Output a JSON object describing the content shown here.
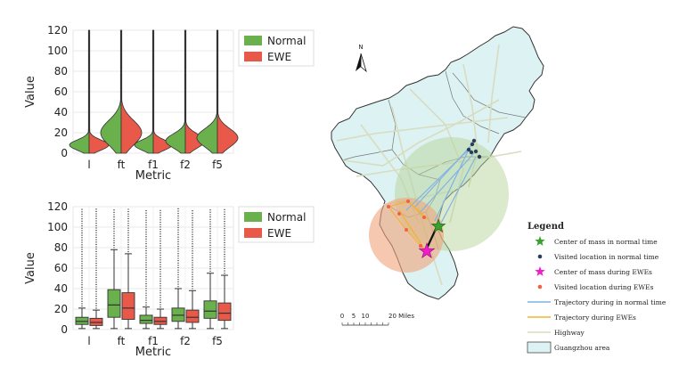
{
  "chart_data": [
    {
      "type": "violin",
      "xlabel": "Metric",
      "ylabel": "Value",
      "categories": [
        "l",
        "ft",
        "f1",
        "f2",
        "f5"
      ],
      "ylim": [
        0,
        120
      ],
      "yticks": [
        0,
        20,
        40,
        60,
        80,
        100,
        120
      ],
      "legend_position": "right",
      "series": [
        {
          "name": "Normal",
          "color": "#6ab04c"
        },
        {
          "name": "EWE",
          "color": "#e8594a"
        }
      ]
    },
    {
      "type": "box",
      "xlabel": "Metric",
      "ylabel": "Value",
      "categories": [
        "l",
        "ft",
        "f1",
        "f2",
        "f5"
      ],
      "ylim": [
        0,
        120
      ],
      "yticks": [
        0,
        20,
        40,
        60,
        80,
        100,
        120
      ],
      "legend_position": "right",
      "series": [
        {
          "name": "Normal",
          "color": "#6ab04c",
          "boxes": [
            {
              "q1": 5,
              "median": 8,
              "q3": 12,
              "whislo": 1,
              "whishi": 21
            },
            {
              "q1": 12,
              "median": 24,
              "q3": 39,
              "whislo": 1,
              "whishi": 78
            },
            {
              "q1": 6,
              "median": 9,
              "q3": 14,
              "whislo": 1,
              "whishi": 22
            },
            {
              "q1": 8,
              "median": 14,
              "q3": 21,
              "whislo": 1,
              "whishi": 40
            },
            {
              "q1": 11,
              "median": 18,
              "q3": 28,
              "whislo": 1,
              "whishi": 55
            }
          ]
        },
        {
          "name": "EWE",
          "color": "#e8594a",
          "boxes": [
            {
              "q1": 4,
              "median": 7,
              "q3": 11,
              "whislo": 1,
              "whishi": 19
            },
            {
              "q1": 10,
              "median": 21,
              "q3": 36,
              "whislo": 1,
              "whishi": 74
            },
            {
              "q1": 5,
              "median": 8,
              "q3": 12,
              "whislo": 1,
              "whishi": 20
            },
            {
              "q1": 7,
              "median": 12,
              "q3": 19,
              "whislo": 1,
              "whishi": 38
            },
            {
              "q1": 9,
              "median": 16,
              "q3": 26,
              "whislo": 1,
              "whishi": 53
            }
          ]
        }
      ]
    },
    {
      "type": "map",
      "north_label": "N",
      "scale_labels": [
        "0",
        "5",
        "10",
        "20 Miles"
      ],
      "legend_title": "Legend",
      "legend_items": [
        {
          "label": "Center of mass in normal time",
          "symbol": "star",
          "color": "#3aa02c"
        },
        {
          "label": "Visited location in normal time",
          "symbol": "dot",
          "color": "#2b3f5c"
        },
        {
          "label": "Center of mass during EWEs",
          "symbol": "star",
          "color": "#ee1fc8"
        },
        {
          "label": "Visited location during EWEs",
          "symbol": "dot",
          "color": "#f0604a"
        },
        {
          "label": "Trajectory during in normal time",
          "symbol": "line",
          "color": "#7fb2e5"
        },
        {
          "label": "Trajectory during EWEs",
          "symbol": "line",
          "color": "#f2b233"
        },
        {
          "label": "Highway",
          "symbol": "line",
          "color": "#d8dcc0"
        },
        {
          "label": "Guangzhou area",
          "symbol": "area",
          "color": "#ddf2f2"
        }
      ]
    }
  ]
}
